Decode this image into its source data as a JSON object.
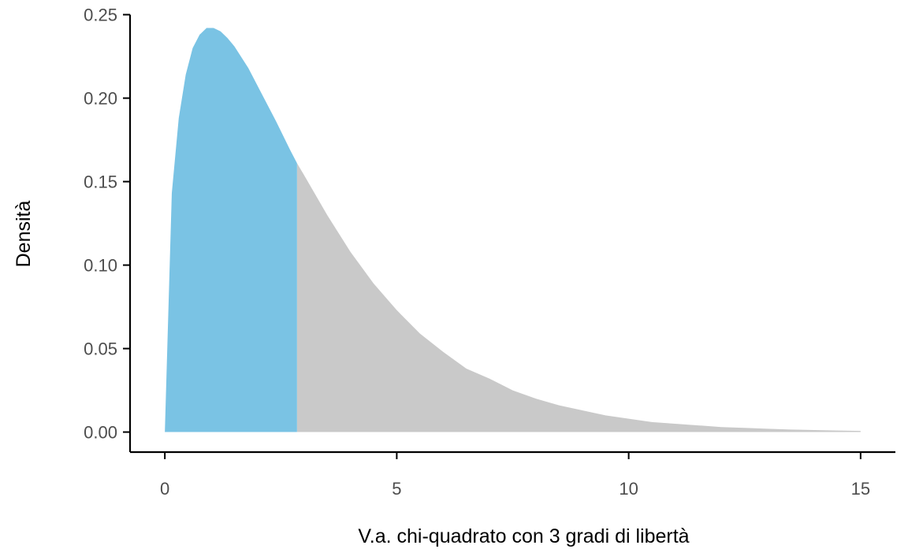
{
  "chart_data": {
    "type": "area",
    "title": "",
    "xlabel": "V.a. chi-quadrato con 3 gradi di libertà",
    "ylabel": "Densità",
    "xlim": [
      -0.75,
      15.75
    ],
    "ylim": [
      -0.012,
      0.255
    ],
    "x_ticks": [
      0,
      5,
      10,
      15
    ],
    "x_tick_labels": [
      "0",
      "5",
      "10",
      "15"
    ],
    "y_ticks": [
      0.0,
      0.05,
      0.1,
      0.15,
      0.2,
      0.25
    ],
    "y_tick_labels": [
      "0.00",
      "0.05",
      "0.10",
      "0.15",
      "0.20",
      "0.25"
    ],
    "grid": false,
    "legend": "none",
    "distribution": {
      "name": "chi-squared",
      "df": 3
    },
    "x": [
      0.0,
      0.15,
      0.3,
      0.45,
      0.6,
      0.75,
      0.9,
      1.05,
      1.2,
      1.35,
      1.5,
      1.8,
      2.1,
      2.4,
      2.7,
      2.85,
      3.0,
      3.5,
      4.0,
      4.5,
      5.0,
      5.5,
      6.0,
      6.5,
      7.0,
      7.5,
      8.0,
      8.5,
      9.0,
      9.5,
      10.0,
      10.5,
      11.0,
      11.5,
      12.0,
      12.5,
      13.0,
      13.5,
      14.0,
      14.5,
      15.0
    ],
    "y": [
      0.0,
      0.143,
      0.188,
      0.214,
      0.23,
      0.238,
      0.242,
      0.242,
      0.24,
      0.236,
      0.231,
      0.218,
      0.202,
      0.186,
      0.169,
      0.161,
      0.154,
      0.13,
      0.108,
      0.089,
      0.073,
      0.059,
      0.048,
      0.038,
      0.032,
      0.025,
      0.02,
      0.016,
      0.013,
      0.01,
      0.008,
      0.006,
      0.005,
      0.004,
      0.003,
      0.0025,
      0.002,
      0.0015,
      0.0012,
      0.0009,
      0.0007
    ],
    "shaded_region": {
      "from": 0,
      "to": 2.85
    },
    "colors": {
      "shaded": "#7AC3E4",
      "unshaded": "#C9C9C9",
      "axis": "#000000",
      "tick_text": "#4D4D4D"
    }
  }
}
